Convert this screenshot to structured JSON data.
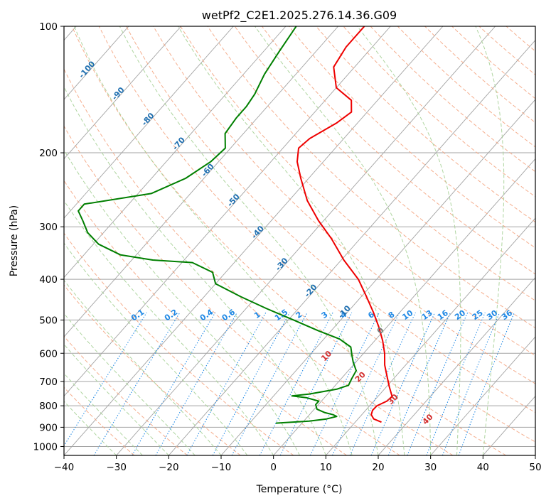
{
  "chart_data": {
    "type": "line",
    "title": "wetPf2_C2E1.2025.276.14.36.G09",
    "xlabel": "Temperature (°C)",
    "ylabel": "Pressure (hPa)",
    "xlim": [
      -40,
      50
    ],
    "ylim": [
      1050,
      100
    ],
    "y_scale": "log",
    "skew": true,
    "x_ticks": [
      "−40",
      "−30",
      "−20",
      "−10",
      "0",
      "10",
      "20",
      "30",
      "40",
      "50"
    ],
    "y_ticks": [
      {
        "p": 100,
        "label": "100"
      },
      {
        "p": 200,
        "label": "200"
      },
      {
        "p": 300,
        "label": "300"
      },
      {
        "p": 400,
        "label": "400"
      },
      {
        "p": 500,
        "label": "500"
      },
      {
        "p": 600,
        "label": "600"
      },
      {
        "p": 700,
        "label": "700"
      },
      {
        "p": 800,
        "label": "800"
      },
      {
        "p": 900,
        "label": "900"
      },
      {
        "p": 1000,
        "label": "1000"
      }
    ],
    "series": [
      {
        "color": "#ee0000",
        "points": [
          [
            875,
            15.0
          ],
          [
            860,
            13.0
          ],
          [
            840,
            11.8
          ],
          [
            820,
            11.3
          ],
          [
            800,
            11.4
          ],
          [
            780,
            12.5
          ],
          [
            760,
            12.7
          ],
          [
            720,
            10.5
          ],
          [
            680,
            8.3
          ],
          [
            640,
            6.0
          ],
          [
            600,
            4.0
          ],
          [
            560,
            1.5
          ],
          [
            520,
            -1.5
          ],
          [
            480,
            -5.0
          ],
          [
            440,
            -9.0
          ],
          [
            400,
            -13.5
          ],
          [
            360,
            -19.5
          ],
          [
            320,
            -25.5
          ],
          [
            290,
            -31.0
          ],
          [
            260,
            -36.5
          ],
          [
            230,
            -41.5
          ],
          [
            210,
            -45.0
          ],
          [
            195,
            -47.0
          ],
          [
            185,
            -46.5
          ],
          [
            170,
            -44.0
          ],
          [
            160,
            -43.0
          ],
          [
            150,
            -45.0
          ],
          [
            140,
            -50.0
          ],
          [
            125,
            -54.0
          ],
          [
            112,
            -55.0
          ],
          [
            100,
            -55.0
          ]
        ]
      },
      {
        "color": "#007f00",
        "points": [
          [
            880,
            -5.0
          ],
          [
            870,
            1.0
          ],
          [
            860,
            4.0
          ],
          [
            848,
            5.5
          ],
          [
            840,
            4.5
          ],
          [
            830,
            2.5
          ],
          [
            815,
            0.5
          ],
          [
            795,
            -0.5
          ],
          [
            780,
            -0.5
          ],
          [
            765,
            -3.5
          ],
          [
            758,
            -6.5
          ],
          [
            750,
            -3.5
          ],
          [
            730,
            1.0
          ],
          [
            715,
            2.5
          ],
          [
            690,
            2.0
          ],
          [
            660,
            1.5
          ],
          [
            630,
            -0.5
          ],
          [
            605,
            -2.0
          ],
          [
            580,
            -3.5
          ],
          [
            555,
            -7.0
          ],
          [
            530,
            -12.5
          ],
          [
            500,
            -19.0
          ],
          [
            470,
            -26.0
          ],
          [
            440,
            -33.0
          ],
          [
            410,
            -40.0
          ],
          [
            385,
            -42.5
          ],
          [
            365,
            -48.0
          ],
          [
            360,
            -56.0
          ],
          [
            350,
            -63.0
          ],
          [
            330,
            -69.0
          ],
          [
            310,
            -73.0
          ],
          [
            290,
            -76.0
          ],
          [
            275,
            -78.5
          ],
          [
            265,
            -78.5
          ],
          [
            250,
            -67.5
          ],
          [
            230,
            -63.5
          ],
          [
            210,
            -61.5
          ],
          [
            195,
            -61.0
          ],
          [
            180,
            -63.5
          ],
          [
            165,
            -64.0
          ],
          [
            155,
            -64.0
          ],
          [
            145,
            -64.5
          ],
          [
            130,
            -66.0
          ],
          [
            115,
            -67.0
          ],
          [
            100,
            -68.0
          ]
        ]
      }
    ],
    "dry_adiabat_labels": [
      "-100",
      "-90",
      "-80",
      "-70",
      "-60",
      "-50",
      "-40",
      "-30",
      "-20",
      "-10"
    ],
    "moist_adiabat_labels": [
      "0",
      "10",
      "20",
      "30",
      "40"
    ],
    "mixing_ratio_labels": [
      "0.1",
      "0.2",
      "0.4",
      "0.6",
      "1",
      "1.5",
      "2",
      "3",
      "4",
      "6",
      "8",
      "10",
      "13",
      "16",
      "20",
      "25",
      "30",
      "36"
    ]
  },
  "colors": {
    "temperature": "#ee0000",
    "dewpoint": "#007f00",
    "isotherm": "#a3a3a3",
    "isobar": "#a3a3a3",
    "dry_adiabat": "#f4a582",
    "moist_adiabat": "#a6d096",
    "mixing_ratio": "#1e88e5"
  }
}
